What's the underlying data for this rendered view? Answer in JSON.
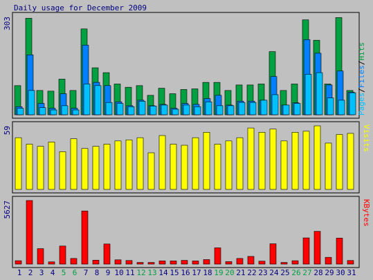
{
  "title": "Daily usage for December 2009",
  "colors": {
    "background": "#c0c0c0",
    "hits": "#00a040",
    "files": "#0080ff",
    "pages": "#00c0ff",
    "visits": "#ffff00",
    "kbytes": "#ff0000",
    "weekend_label": "#00a040",
    "weekday_label": "#000080",
    "border": "#000000"
  },
  "chart_data": [
    {
      "type": "bar",
      "panel": "hits-files-pages",
      "y_max_label": "303",
      "legend": {
        "pages": "Pages",
        "sep1": "/",
        "files": "Files",
        "sep2": "/",
        "hits": "Hits"
      },
      "categories": [
        "1",
        "2",
        "3",
        "4",
        "5",
        "6",
        "7",
        "8",
        "9",
        "10",
        "11",
        "12",
        "13",
        "14",
        "15",
        "16",
        "17",
        "18",
        "19",
        "20",
        "21",
        "22",
        "23",
        "24",
        "25",
        "26",
        "27",
        "28",
        "29",
        "30",
        "31"
      ],
      "ylim": [
        0,
        303
      ],
      "series": [
        {
          "name": "Hits",
          "values": [
            90,
            298,
            75,
            73,
            110,
            75,
            265,
            145,
            130,
            95,
            85,
            90,
            60,
            82,
            65,
            78,
            80,
            100,
            100,
            75,
            92,
            92,
            95,
            195,
            75,
            95,
            293,
            230,
            95,
            300,
            75
          ]
        },
        {
          "name": "Files",
          "values": [
            25,
            185,
            35,
            20,
            65,
            20,
            215,
            100,
            90,
            40,
            28,
            45,
            28,
            32,
            20,
            35,
            32,
            50,
            60,
            30,
            42,
            42,
            45,
            118,
            30,
            37,
            232,
            190,
            92,
            135,
            70
          ]
        },
        {
          "name": "Pages",
          "values": [
            20,
            75,
            22,
            15,
            28,
            15,
            95,
            90,
            38,
            35,
            25,
            42,
            27,
            30,
            17,
            30,
            25,
            40,
            28,
            28,
            38,
            38,
            45,
            62,
            30,
            35,
            125,
            130,
            52,
            45,
            68
          ]
        }
      ]
    },
    {
      "type": "bar",
      "panel": "visits",
      "y_max_label": "59",
      "legend": "Visits",
      "categories": [
        "1",
        "2",
        "3",
        "4",
        "5",
        "6",
        "7",
        "8",
        "9",
        "10",
        "11",
        "12",
        "13",
        "14",
        "15",
        "16",
        "17",
        "18",
        "19",
        "20",
        "21",
        "22",
        "23",
        "24",
        "25",
        "26",
        "27",
        "28",
        "29",
        "30",
        "31"
      ],
      "ylim": [
        0,
        59
      ],
      "series": [
        {
          "name": "Visits",
          "values": [
            48,
            42,
            40,
            44,
            35,
            47,
            38,
            40,
            42,
            45,
            46,
            48,
            34,
            50,
            42,
            41,
            48,
            53,
            42,
            45,
            48,
            57,
            53,
            56,
            45,
            53,
            54,
            59,
            43,
            51,
            52
          ]
        }
      ]
    },
    {
      "type": "bar",
      "panel": "kbytes",
      "y_max_label": "5627",
      "legend": "KBytes",
      "categories": [
        "1",
        "2",
        "3",
        "4",
        "5",
        "6",
        "7",
        "8",
        "9",
        "10",
        "11",
        "12",
        "13",
        "14",
        "15",
        "16",
        "17",
        "18",
        "19",
        "20",
        "21",
        "22",
        "23",
        "24",
        "25",
        "26",
        "27",
        "28",
        "29",
        "30",
        "31"
      ],
      "ylim": [
        0,
        5627
      ],
      "series": [
        {
          "name": "KBytes",
          "values": [
            300,
            5627,
            1370,
            200,
            1600,
            500,
            4700,
            350,
            1780,
            380,
            320,
            150,
            150,
            280,
            280,
            330,
            280,
            400,
            1440,
            220,
            500,
            680,
            260,
            1800,
            150,
            300,
            2320,
            2900,
            600,
            2300,
            320
          ]
        }
      ]
    }
  ],
  "weekend_days": [
    5,
    6,
    12,
    13,
    19,
    20,
    26,
    27
  ]
}
